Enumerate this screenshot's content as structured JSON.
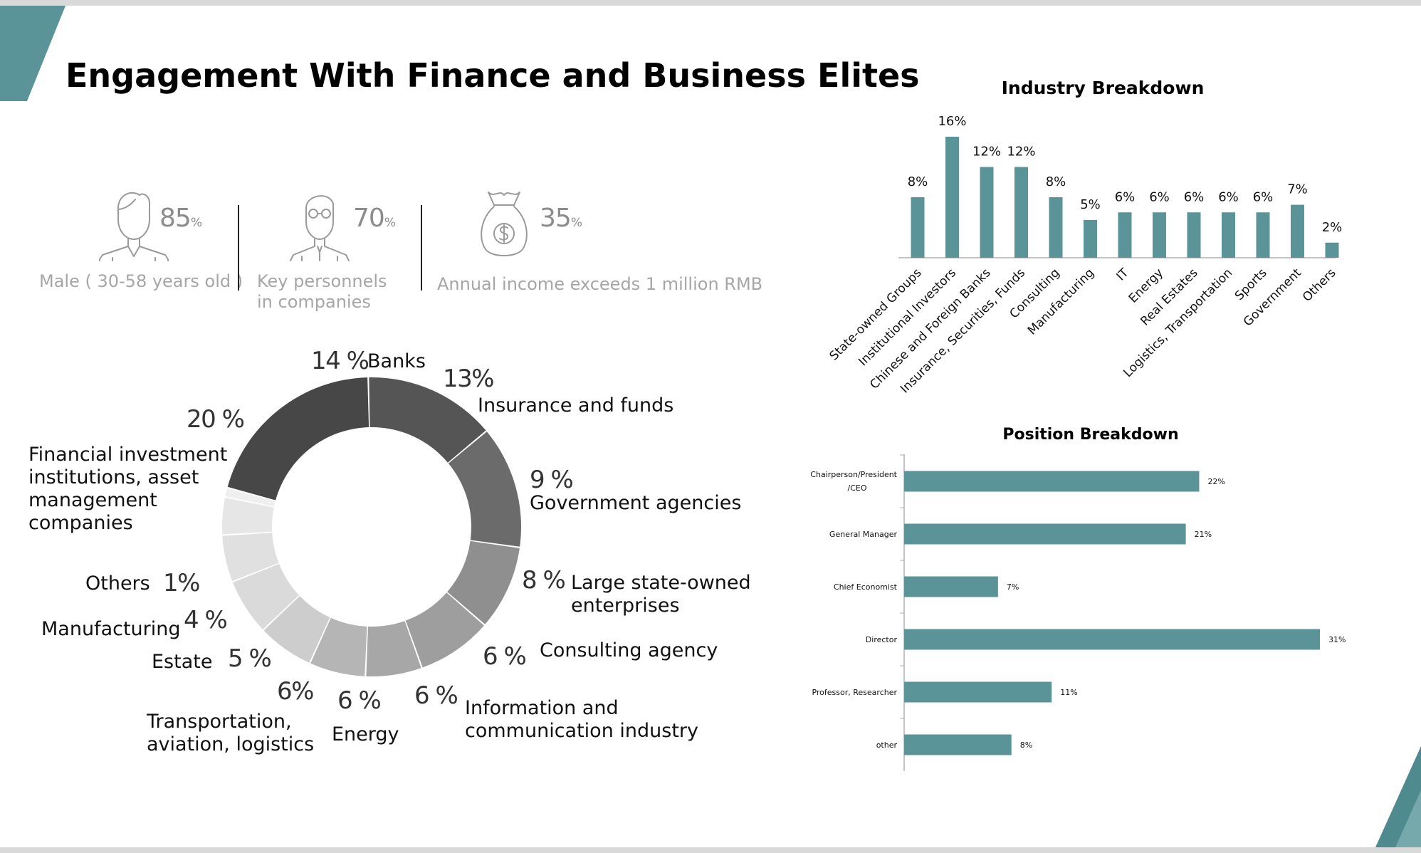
{
  "title": "Engagement With Finance and Business Elites",
  "colors": {
    "accent": "#5a9498",
    "donut": [
      "#555555",
      "#6b6b6b",
      "#8f8f8f",
      "#9e9e9e",
      "#a7a7a7",
      "#b5b5b5",
      "#cdcdcd",
      "#dadada",
      "#e0e0e0",
      "#e6e6e6",
      "#efefef",
      "#474747"
    ]
  },
  "stats": [
    {
      "value": "85",
      "unit": "%",
      "label_lines": [
        "Male ( 30-58 years old )"
      ],
      "icon": "male-person-icon"
    },
    {
      "value": "70",
      "unit": "%",
      "label_lines": [
        "Key personnels",
        "in companies"
      ],
      "icon": "businessman-glasses-icon"
    },
    {
      "value": "35",
      "unit": "%",
      "label_lines": [
        "Annual income exceeds 1 million RMB"
      ],
      "icon": "money-bag-icon"
    }
  ],
  "chart_data": [
    {
      "type": "pie",
      "style": "donut",
      "slices": [
        {
          "pct_label": "14 %",
          "label_lines": [
            "Banks"
          ],
          "value": 14
        },
        {
          "pct_label": "13%",
          "label_lines": [
            "Insurance and funds"
          ],
          "value": 13
        },
        {
          "pct_label": "9 %",
          "label_lines": [
            "Government agencies"
          ],
          "value": 9
        },
        {
          "pct_label": "8 %",
          "label_lines": [
            "Large state-owned",
            "enterprises"
          ],
          "value": 8
        },
        {
          "pct_label": "6 %",
          "label_lines": [
            "Consulting agency"
          ],
          "value": 6
        },
        {
          "pct_label": "6 %",
          "label_lines": [
            "Information and",
            "communication industry"
          ],
          "value": 6
        },
        {
          "pct_label": "6 %",
          "label_lines": [
            "Energy"
          ],
          "value": 6
        },
        {
          "pct_label": "6%",
          "label_lines": [
            "Transportation,",
            "aviation, logistics"
          ],
          "value": 6
        },
        {
          "pct_label": "5 %",
          "label_lines": [
            "Estate"
          ],
          "value": 5
        },
        {
          "pct_label": "4 %",
          "label_lines": [
            "Manufacturing"
          ],
          "value": 4
        },
        {
          "pct_label": "1%",
          "label_lines": [
            "Others"
          ],
          "value": 1
        },
        {
          "pct_label": "20 %",
          "label_lines": [
            "Financial investment",
            "institutions, asset",
            "management",
            "companies"
          ],
          "value": 20
        }
      ]
    },
    {
      "type": "bar",
      "title": "Industry Breakdown",
      "categories": [
        "State-owned Groups",
        "Institutional Investors",
        "Chinese and Foreign Banks",
        "Insurance, Securities, Funds",
        "Consulting",
        "Manufacturing",
        "IT",
        "Energy",
        "Real Estates",
        "Logistics, Transportation",
        "Sports",
        "Government",
        "Others"
      ],
      "values": [
        8,
        16,
        12,
        12,
        8,
        5,
        6,
        6,
        6,
        6,
        6,
        7,
        2
      ],
      "value_labels": [
        "8%",
        "16%",
        "12%",
        "12%",
        "8%",
        "5%",
        "6%",
        "6%",
        "6%",
        "6%",
        "6%",
        "7%",
        "2%"
      ],
      "ylim": [
        0,
        16
      ]
    },
    {
      "type": "bar",
      "orientation": "horizontal",
      "title": "Position Breakdown",
      "categories": [
        [
          "Chairperson/President",
          "/CEO"
        ],
        [
          "General Manager"
        ],
        [
          "Chief Economist"
        ],
        [
          "Director"
        ],
        [
          "Professor, Researcher"
        ],
        [
          "other"
        ]
      ],
      "values": [
        22,
        21,
        7,
        31,
        11,
        8
      ],
      "value_labels": [
        "22%",
        "21%",
        "7%",
        "31%",
        "11%",
        "8%"
      ],
      "xlim": [
        0,
        31
      ]
    }
  ]
}
